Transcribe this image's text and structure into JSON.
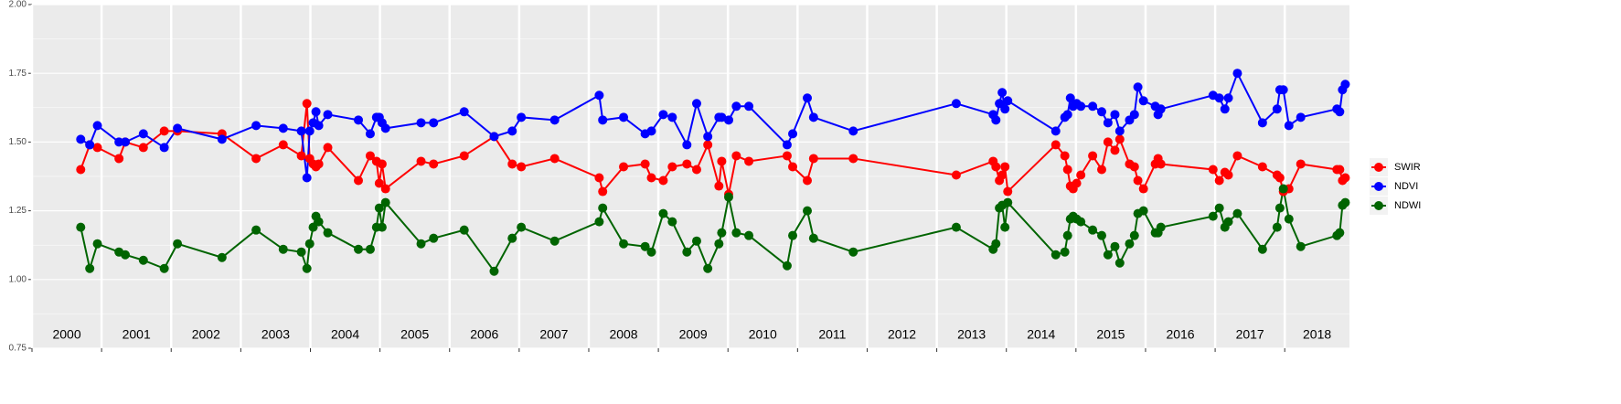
{
  "chart_data": {
    "type": "line",
    "x": [
      2000.7,
      2000.83,
      2000.94,
      2001.25,
      2001.34,
      2001.6,
      2001.9,
      2002.09,
      2002.73,
      2003.22,
      2003.61,
      2003.87,
      2003.95,
      2003.99,
      2004.04,
      2004.08,
      2004.12,
      2004.25,
      2004.69,
      2004.86,
      2004.95,
      2004.99,
      2005.03,
      2005.08,
      2005.59,
      2005.77,
      2006.21,
      2006.64,
      2006.9,
      2007.03,
      2007.51,
      2008.15,
      2008.2,
      2008.5,
      2008.81,
      2008.9,
      2009.07,
      2009.2,
      2009.41,
      2009.55,
      2009.71,
      2009.87,
      2009.91,
      2010.01,
      2010.12,
      2010.3,
      2010.85,
      2010.93,
      2011.14,
      2011.23,
      2011.8,
      2013.28,
      2013.81,
      2013.85,
      2013.9,
      2013.94,
      2013.98,
      2014.02,
      2014.71,
      2014.84,
      2014.88,
      2014.92,
      2014.96,
      2015.01,
      2015.07,
      2015.24,
      2015.37,
      2015.46,
      2015.56,
      2015.63,
      2015.77,
      2015.84,
      2015.89,
      2015.97,
      2016.14,
      2016.18,
      2016.22,
      2016.97,
      2017.06,
      2017.14,
      2017.19,
      2017.32,
      2017.68,
      2017.89,
      2017.93,
      2017.98,
      2018.06,
      2018.23,
      2018.75,
      2018.79,
      2018.83,
      2018.87
    ],
    "series": [
      {
        "name": "SWIR",
        "color": "#ff0000",
        "values": [
          1.4,
          1.49,
          1.48,
          1.44,
          1.5,
          1.48,
          1.54,
          1.54,
          1.53,
          1.44,
          1.49,
          1.45,
          1.64,
          1.44,
          1.42,
          1.41,
          1.42,
          1.48,
          1.36,
          1.45,
          1.43,
          1.35,
          1.42,
          1.33,
          1.43,
          1.42,
          1.45,
          1.52,
          1.42,
          1.41,
          1.44,
          1.37,
          1.32,
          1.41,
          1.42,
          1.37,
          1.36,
          1.41,
          1.42,
          1.4,
          1.49,
          1.34,
          1.43,
          1.31,
          1.45,
          1.43,
          1.45,
          1.41,
          1.36,
          1.44,
          1.44,
          1.38,
          1.43,
          1.41,
          1.36,
          1.38,
          1.41,
          1.32,
          1.49,
          1.45,
          1.4,
          1.34,
          1.33,
          1.35,
          1.38,
          1.45,
          1.4,
          1.5,
          1.47,
          1.51,
          1.42,
          1.41,
          1.36,
          1.33,
          1.42,
          1.44,
          1.42,
          1.4,
          1.36,
          1.39,
          1.38,
          1.45,
          1.41,
          1.38,
          1.37,
          1.32,
          1.33,
          1.42,
          1.4,
          1.4,
          1.36,
          1.37
        ]
      },
      {
        "name": "NDVI",
        "color": "#0000ff",
        "values": [
          1.51,
          1.49,
          1.56,
          1.5,
          1.5,
          1.53,
          1.48,
          1.55,
          1.51,
          1.56,
          1.55,
          1.54,
          1.37,
          1.54,
          1.57,
          1.61,
          1.56,
          1.6,
          1.58,
          1.53,
          1.59,
          1.59,
          1.57,
          1.55,
          1.57,
          1.57,
          1.61,
          1.52,
          1.54,
          1.59,
          1.58,
          1.67,
          1.58,
          1.59,
          1.53,
          1.54,
          1.6,
          1.59,
          1.49,
          1.64,
          1.52,
          1.59,
          1.59,
          1.58,
          1.63,
          1.63,
          1.49,
          1.53,
          1.66,
          1.59,
          1.54,
          1.64,
          1.6,
          1.58,
          1.64,
          1.68,
          1.62,
          1.65,
          1.54,
          1.59,
          1.6,
          1.66,
          1.63,
          1.64,
          1.63,
          1.63,
          1.61,
          1.57,
          1.6,
          1.54,
          1.58,
          1.6,
          1.7,
          1.65,
          1.63,
          1.6,
          1.62,
          1.67,
          1.66,
          1.62,
          1.66,
          1.75,
          1.57,
          1.62,
          1.69,
          1.69,
          1.56,
          1.59,
          1.62,
          1.61,
          1.69,
          1.71
        ]
      },
      {
        "name": "NDWI",
        "color": "#006400",
        "values": [
          1.19,
          1.04,
          1.13,
          1.1,
          1.09,
          1.07,
          1.04,
          1.13,
          1.08,
          1.18,
          1.11,
          1.1,
          1.04,
          1.13,
          1.19,
          1.23,
          1.21,
          1.17,
          1.11,
          1.11,
          1.19,
          1.26,
          1.19,
          1.28,
          1.13,
          1.15,
          1.18,
          1.03,
          1.15,
          1.19,
          1.14,
          1.21,
          1.26,
          1.13,
          1.12,
          1.1,
          1.24,
          1.21,
          1.1,
          1.14,
          1.04,
          1.13,
          1.17,
          1.3,
          1.17,
          1.16,
          1.05,
          1.16,
          1.25,
          1.15,
          1.1,
          1.19,
          1.11,
          1.13,
          1.26,
          1.27,
          1.19,
          1.28,
          1.09,
          1.1,
          1.16,
          1.22,
          1.23,
          1.22,
          1.21,
          1.18,
          1.16,
          1.09,
          1.12,
          1.06,
          1.13,
          1.16,
          1.24,
          1.25,
          1.17,
          1.17,
          1.19,
          1.23,
          1.26,
          1.19,
          1.21,
          1.24,
          1.11,
          1.19,
          1.26,
          1.33,
          1.22,
          1.12,
          1.16,
          1.17,
          1.27,
          1.28
        ]
      }
    ],
    "xlim": [
      2000,
      2018.93
    ],
    "xticks": [
      2000,
      2001,
      2002,
      2003,
      2004,
      2005,
      2006,
      2007,
      2008,
      2009,
      2010,
      2011,
      2012,
      2013,
      2014,
      2015,
      2016,
      2017,
      2018
    ],
    "ylim": [
      0.75,
      2.0
    ],
    "yticks": [
      0.75,
      {
        "value": 1.0,
        "label": "1.00"
      },
      1.25,
      {
        "value": 1.5,
        "label": "1.50"
      },
      1.75,
      {
        "value": 2.0,
        "label": "2.00"
      }
    ],
    "grid": true,
    "legend": "right"
  }
}
